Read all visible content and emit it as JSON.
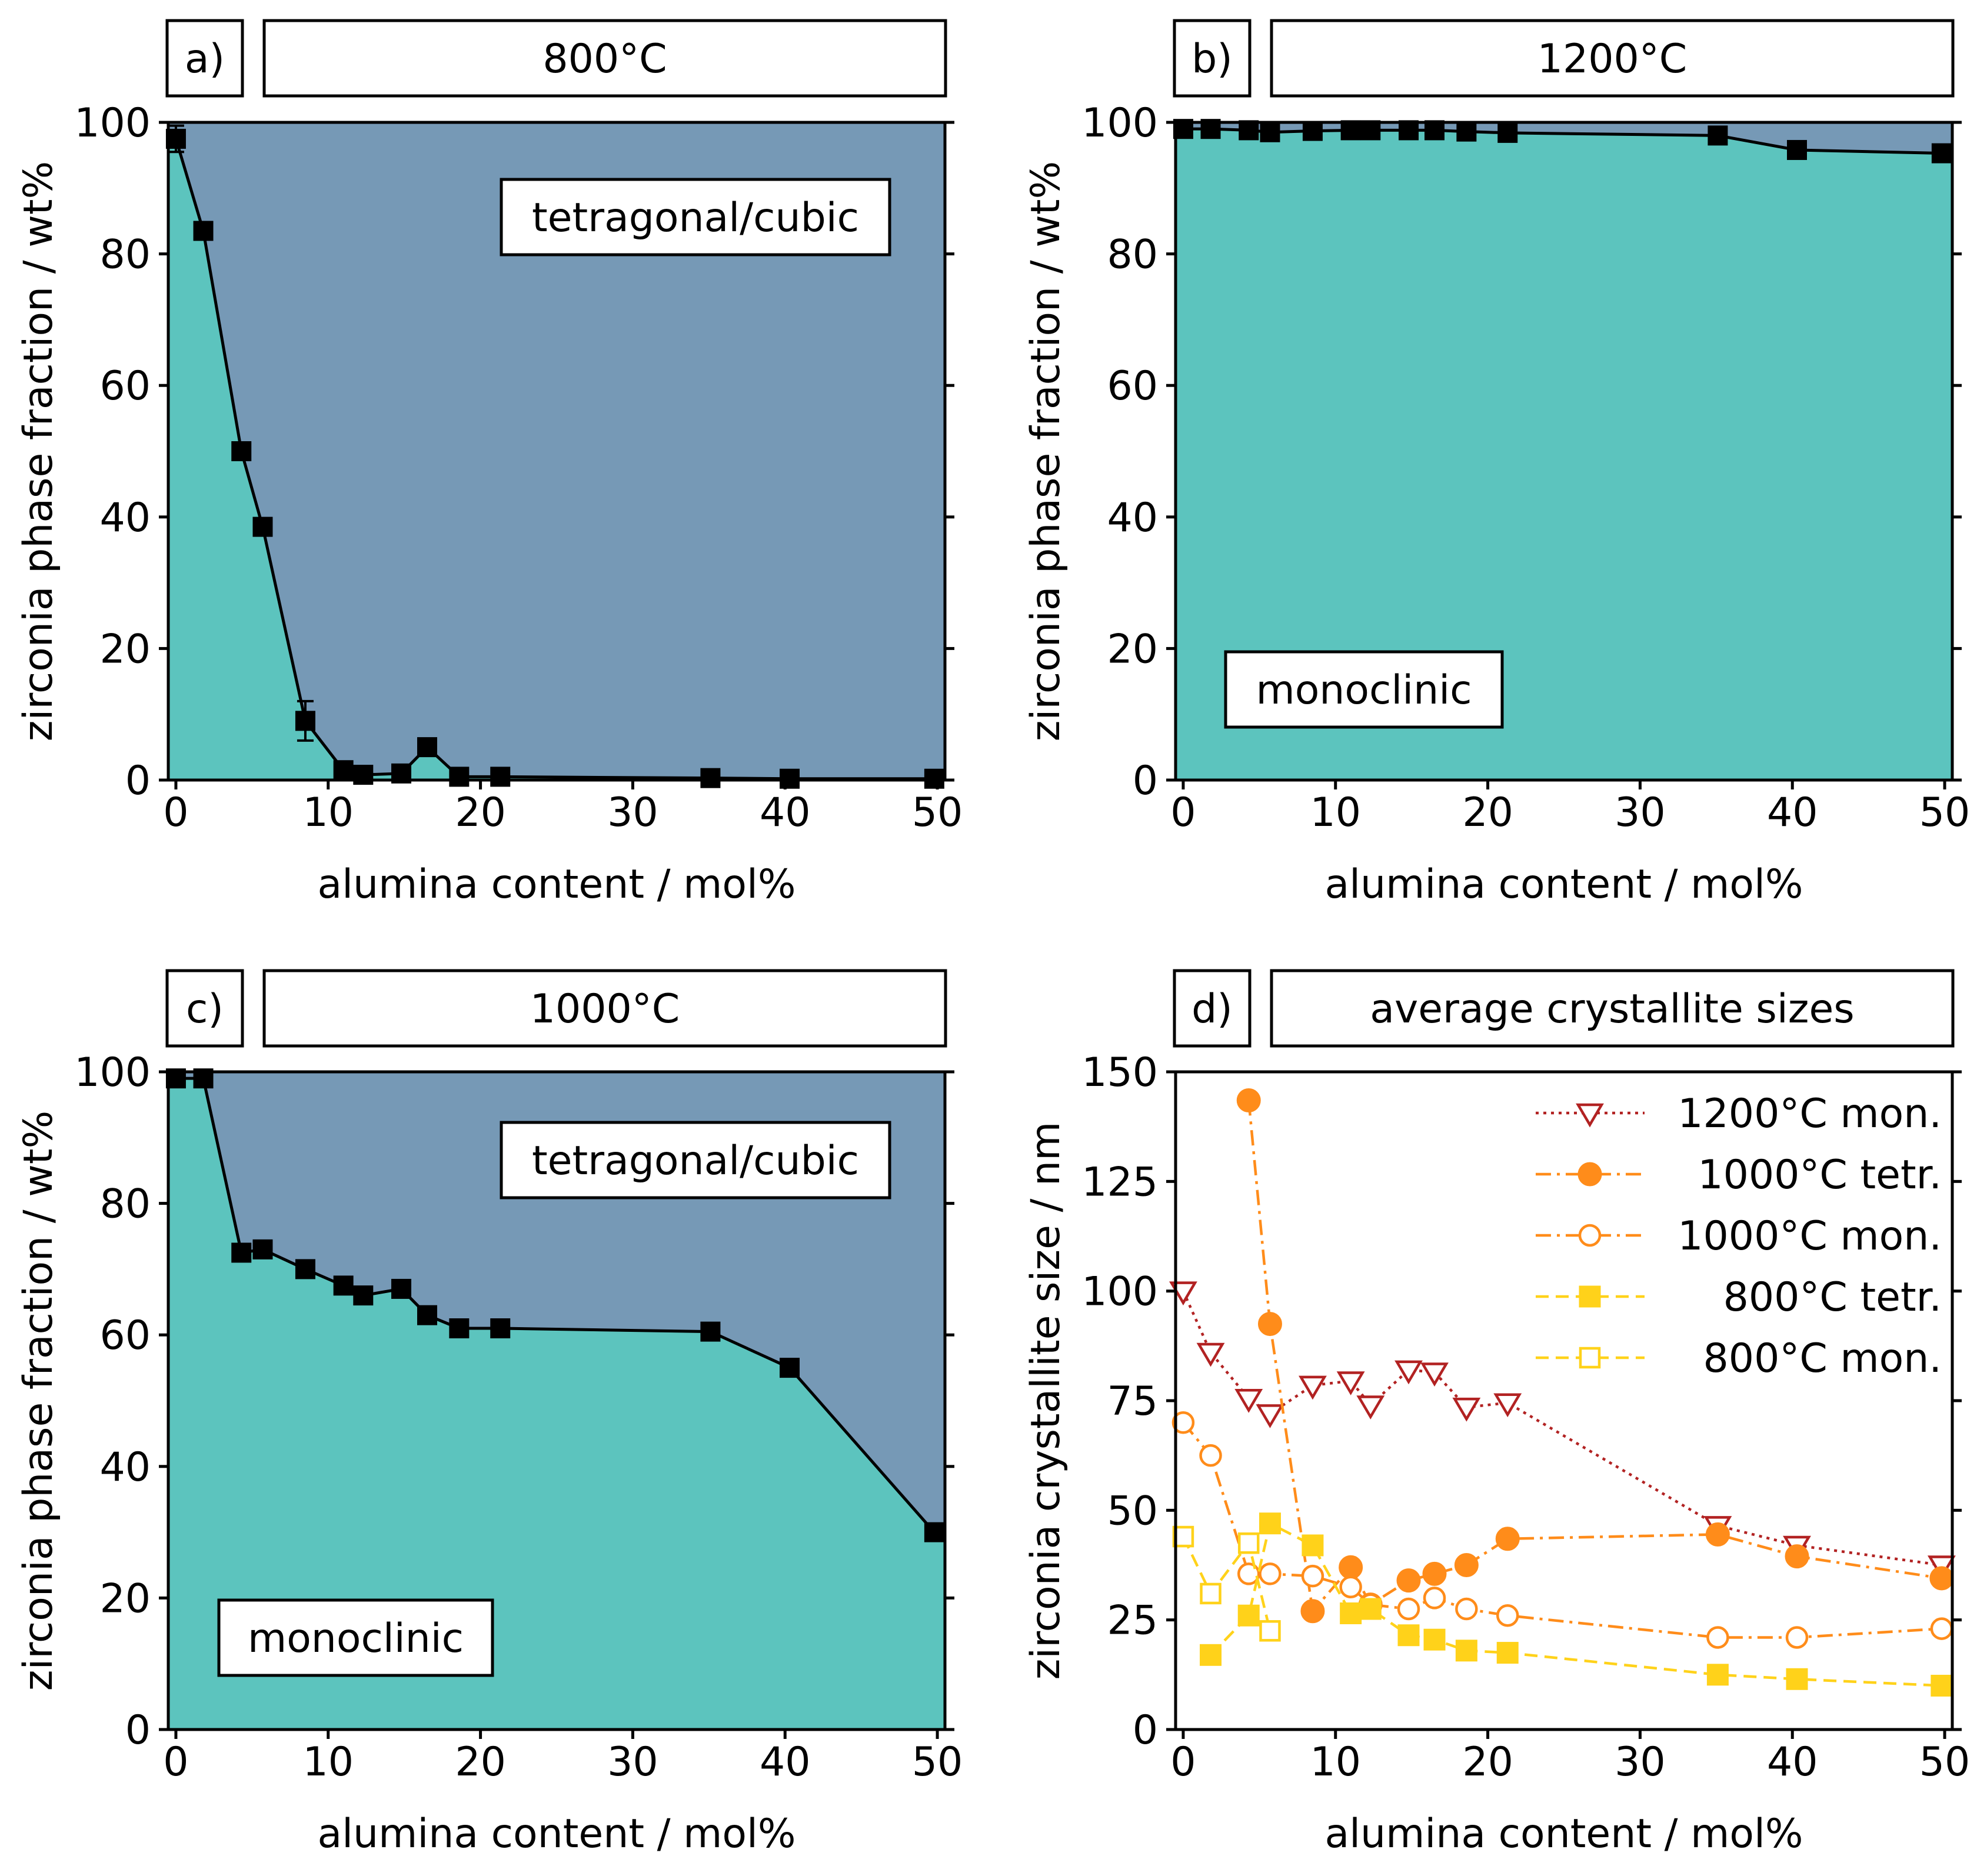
{
  "colors": {
    "monoclinic": "#5cc4be",
    "tetragonal": "#7699b6",
    "line": "#000000",
    "mon1200": "#b22222",
    "orange": "#ff8c1a",
    "yellow": "#ffd21a"
  },
  "chart_data": [
    {
      "type": "area",
      "panel_label": "a)",
      "title": "800°C",
      "xlabel": "alumina content / mol%",
      "ylabel": "zirconia phase fraction / wt%",
      "xlim": [
        -0.5,
        50.5
      ],
      "ylim": [
        0,
        100
      ],
      "xticks": [
        0,
        10,
        20,
        30,
        40,
        50
      ],
      "yticks": [
        0,
        20,
        40,
        60,
        80,
        100
      ],
      "regions": {
        "below": "monoclinic",
        "above": "tetragonal/cubic"
      },
      "region_labels": [
        "tetragonal/cubic"
      ],
      "series": [
        {
          "name": "monoclinic fraction",
          "x": [
            0,
            1.8,
            4.3,
            5.7,
            8.5,
            11.0,
            12.3,
            14.8,
            16.5,
            18.6,
            21.3,
            35.1,
            40.3,
            49.8
          ],
          "y": [
            97.5,
            83.5,
            50.0,
            38.5,
            9.0,
            1.5,
            0.8,
            1.0,
            5.0,
            0.5,
            0.5,
            0.3,
            0.2,
            0.2
          ],
          "yerr": [
            2.0,
            1.0,
            1.0,
            1.0,
            3.0,
            1.0,
            0.5,
            0.5,
            1.0,
            0.3,
            0.3,
            0.2,
            0.2,
            0.2
          ]
        }
      ]
    },
    {
      "type": "area",
      "panel_label": "b)",
      "title": "1200°C",
      "xlabel": "alumina content / mol%",
      "ylabel": "zirconia phase fraction / wt%",
      "xlim": [
        -0.5,
        50.5
      ],
      "ylim": [
        0,
        100
      ],
      "xticks": [
        0,
        10,
        20,
        30,
        40,
        50
      ],
      "yticks": [
        0,
        20,
        40,
        60,
        80,
        100
      ],
      "regions": {
        "below": "monoclinic",
        "above": "tetragonal/cubic"
      },
      "region_labels": [
        "monoclinic"
      ],
      "series": [
        {
          "name": "monoclinic fraction",
          "x": [
            0,
            1.8,
            4.3,
            5.7,
            8.5,
            11.0,
            12.3,
            14.8,
            16.5,
            18.6,
            21.3,
            35.1,
            40.3,
            49.8
          ],
          "y": [
            99.0,
            99.0,
            98.8,
            98.5,
            98.7,
            98.8,
            98.8,
            98.8,
            98.8,
            98.6,
            98.4,
            98.0,
            95.8,
            95.3
          ],
          "yerr": [
            0.3,
            0.3,
            0.3,
            0.3,
            0.3,
            0.3,
            0.3,
            0.3,
            0.3,
            0.3,
            0.3,
            0.5,
            0.5,
            0.5
          ]
        }
      ]
    },
    {
      "type": "area",
      "panel_label": "c)",
      "title": "1000°C",
      "xlabel": "alumina content / mol%",
      "ylabel": "zirconia phase fraction / wt%",
      "xlim": [
        -0.5,
        50.5
      ],
      "ylim": [
        0,
        100
      ],
      "xticks": [
        0,
        10,
        20,
        30,
        40,
        50
      ],
      "yticks": [
        0,
        20,
        40,
        60,
        80,
        100
      ],
      "regions": {
        "below": "monoclinic",
        "above": "tetragonal/cubic"
      },
      "region_labels": [
        "tetragonal/cubic",
        "monoclinic"
      ],
      "series": [
        {
          "name": "monoclinic fraction",
          "x": [
            0,
            1.8,
            4.3,
            5.7,
            8.5,
            11.0,
            12.3,
            14.8,
            16.5,
            18.6,
            21.3,
            35.1,
            40.3,
            49.8
          ],
          "y": [
            99.0,
            99.0,
            72.5,
            73.0,
            70.0,
            67.5,
            66.0,
            67.0,
            63.0,
            61.0,
            61.0,
            60.5,
            55.0,
            30.0
          ],
          "yerr": [
            0.3,
            0.3,
            0.5,
            0.5,
            0.5,
            0.5,
            0.5,
            0.5,
            0.5,
            0.5,
            0.5,
            0.5,
            0.5,
            0.5
          ]
        }
      ]
    },
    {
      "type": "line",
      "panel_label": "d)",
      "title": "average crystallite sizes",
      "xlabel": "alumina content / mol%",
      "ylabel": "zirconia crystallite size / nm",
      "xlim": [
        -0.5,
        50.5
      ],
      "ylim": [
        0,
        150
      ],
      "xticks": [
        0,
        10,
        20,
        30,
        40,
        50
      ],
      "yticks": [
        0,
        25,
        50,
        75,
        100,
        125,
        150
      ],
      "legend": "top-right",
      "series": [
        {
          "name": "1200°C mon.",
          "color_key": "mon1200",
          "marker": "triangle-down-open",
          "dash": "dotted",
          "x": [
            0,
            1.8,
            4.3,
            5.7,
            8.5,
            11.0,
            12.3,
            14.8,
            16.5,
            18.6,
            21.3,
            35.1,
            40.3,
            49.8
          ],
          "y": [
            100,
            86,
            75.5,
            72,
            78.5,
            79.5,
            74,
            82,
            81.5,
            73.5,
            74.5,
            46.5,
            42,
            37.5
          ]
        },
        {
          "name": "1000°C tetr.",
          "color_key": "orange",
          "marker": "circle-filled",
          "dash": "dashdot",
          "x": [
            4.3,
            5.7,
            8.5,
            11.0,
            12.3,
            14.8,
            16.5,
            18.6,
            21.3,
            35.1,
            40.3,
            49.8
          ],
          "y": [
            143.5,
            92.5,
            27,
            37,
            28.5,
            34,
            35.5,
            37.5,
            43.5,
            44.5,
            39.5,
            34.5
          ]
        },
        {
          "name": "1000°C mon.",
          "color_key": "orange",
          "marker": "circle-open",
          "dash": "dashdot",
          "x": [
            0,
            1.8,
            4.3,
            5.7,
            8.5,
            11.0,
            12.3,
            14.8,
            16.5,
            18.6,
            21.3,
            35.1,
            40.3,
            49.8
          ],
          "y": [
            70,
            62.5,
            35.5,
            35.5,
            35,
            32.5,
            28.5,
            27.5,
            30,
            27.5,
            26,
            21,
            21,
            23
          ]
        },
        {
          "name": "800°C tetr.",
          "color_key": "yellow",
          "marker": "square-filled",
          "dash": "dashed",
          "x": [
            1.8,
            4.3,
            5.7,
            8.5,
            11.0,
            12.3,
            14.8,
            16.5,
            18.6,
            21.3,
            35.1,
            40.3,
            49.8
          ],
          "y": [
            17,
            26,
            47,
            42,
            26.5,
            27.5,
            21.5,
            20.5,
            18,
            17.5,
            12.5,
            11.5,
            10
          ]
        },
        {
          "name": "800°C mon.",
          "color_key": "yellow",
          "marker": "square-open",
          "dash": "dashed",
          "x": [
            0,
            1.8,
            4.3,
            5.7
          ],
          "y": [
            44,
            31,
            42.5,
            22.5
          ]
        }
      ]
    }
  ]
}
